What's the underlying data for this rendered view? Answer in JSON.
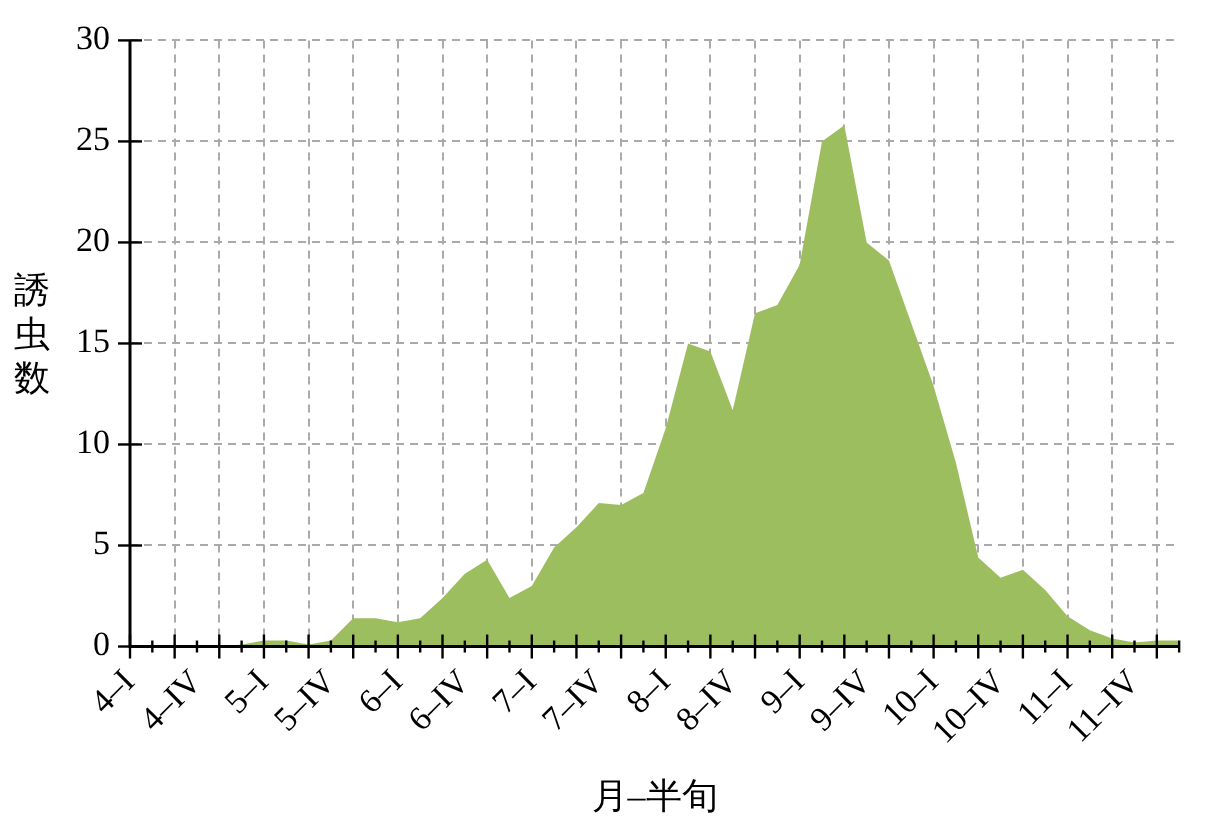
{
  "chart_data": {
    "type": "area",
    "xlabel": "月–半旬",
    "ylabel": "誘虫数",
    "categories": [
      "4–I",
      null,
      null,
      "4–IV",
      null,
      null,
      "5–I",
      null,
      null,
      "5–IV",
      null,
      null,
      "6–I",
      null,
      null,
      "6–IV",
      null,
      null,
      "7–I",
      null,
      null,
      "7–IV",
      null,
      null,
      "8–I",
      null,
      null,
      "8–IV",
      null,
      null,
      "9–I",
      null,
      null,
      "9–IV",
      null,
      null,
      "10–I",
      null,
      null,
      "10–IV",
      null,
      null,
      "11–I",
      null,
      null,
      "11–IV",
      null,
      null
    ],
    "series": [
      {
        "color": "#9dbe5f",
        "values": [
          0,
          0,
          0,
          0,
          0,
          0.1,
          0.3,
          0.3,
          0.1,
          0.3,
          1.4,
          1.4,
          1.2,
          1.4,
          2.4,
          3.6,
          4.3,
          2.4,
          3.0,
          4.9,
          5.9,
          7.1,
          7.0,
          7.6,
          10.8,
          15.0,
          14.6,
          11.7,
          16.5,
          16.9,
          18.9,
          25.0,
          25.8,
          20.0,
          19.1,
          16.0,
          12.9,
          9.1,
          4.4,
          3.4,
          3.8,
          2.8,
          1.5,
          0.8,
          0.4,
          0.2,
          0.3,
          0.3
        ]
      }
    ],
    "ylim": [
      0,
      30
    ],
    "yticks": [
      0,
      5,
      10,
      15,
      20,
      25,
      30
    ],
    "grid": true,
    "legend": false
  }
}
